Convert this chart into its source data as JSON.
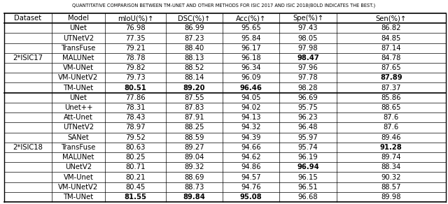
{
  "title": "QUANTITATIVE COMPARISON BETWEEN TM-UNET AND OTHER METHODS FOR ISIC 2017 AND ISIC 2018(BOLD INDICATES THE BEST.)",
  "columns": [
    "Dataset",
    "Model",
    "mIoU(%)↑",
    "DSC(%)↑",
    "Acc(%)↑",
    "Spe(%)↑",
    "Sen(%)↑"
  ],
  "rows_isic17": [
    [
      "UNet",
      "76.98",
      "86.99",
      "95.65",
      "97.43",
      "86.82"
    ],
    [
      "UTNetV2",
      "77.35",
      "87.23",
      "95.84",
      "98.05",
      "84.85"
    ],
    [
      "TransFuse",
      "79.21",
      "88.40",
      "96.17",
      "97.98",
      "87.14"
    ],
    [
      "MALUNet",
      "78.78",
      "88.13",
      "96.18",
      "98.47",
      "84.78"
    ],
    [
      "VM-UNet",
      "79.82",
      "88.52",
      "96.34",
      "97.96",
      "87.65"
    ],
    [
      "VM-UNetV2",
      "79.73",
      "88.14",
      "96.09",
      "97.78",
      "87.89"
    ],
    [
      "TM-UNet",
      "80.51",
      "89.20",
      "96.46",
      "98.28",
      "87.37"
    ]
  ],
  "rows_isic18": [
    [
      "UNet",
      "77.86",
      "87.55",
      "94.05",
      "96.69",
      "85.86"
    ],
    [
      "Unet++",
      "78.31",
      "87.83",
      "94.02",
      "95.75",
      "88.65"
    ],
    [
      "Att-Unet",
      "78.43",
      "87.91",
      "94.13",
      "96.23",
      "87.6"
    ],
    [
      "UTNetV2",
      "78.97",
      "88.25",
      "94.32",
      "96.48",
      "87.6"
    ],
    [
      "SANet",
      "79.52",
      "88.59",
      "94.39",
      "95.97",
      "89.46"
    ],
    [
      "TransFuse",
      "80.63",
      "89.27",
      "94.66",
      "95.74",
      "91.28"
    ],
    [
      "MALUNet",
      "80.25",
      "89.04",
      "94.62",
      "96.19",
      "89.74"
    ],
    [
      "UNetV2",
      "80.71",
      "89.32",
      "94.86",
      "96.94",
      "88.34"
    ],
    [
      "VM-Unet",
      "80.21",
      "88.69",
      "94.57",
      "96.15",
      "90.32"
    ],
    [
      "VM-UNetV2",
      "80.45",
      "88.73",
      "94.76",
      "96.51",
      "88.57"
    ],
    [
      "TM-UNet",
      "81.55",
      "89.84",
      "95.08",
      "96.68",
      "89.98"
    ]
  ],
  "bold_isic17": {
    "TM-UNet": [
      2,
      3,
      4
    ],
    "MALUNet": [
      5
    ],
    "VM-UNetV2": [
      6
    ]
  },
  "bold_isic18": {
    "TM-UNet": [
      2,
      3,
      4
    ],
    "UNetV2": [
      5
    ],
    "TransFuse": [
      6
    ]
  },
  "bg_color": "#ffffff",
  "grid_color": "#000000",
  "title_fontsize": 4.8,
  "cell_fontsize": 7.2
}
